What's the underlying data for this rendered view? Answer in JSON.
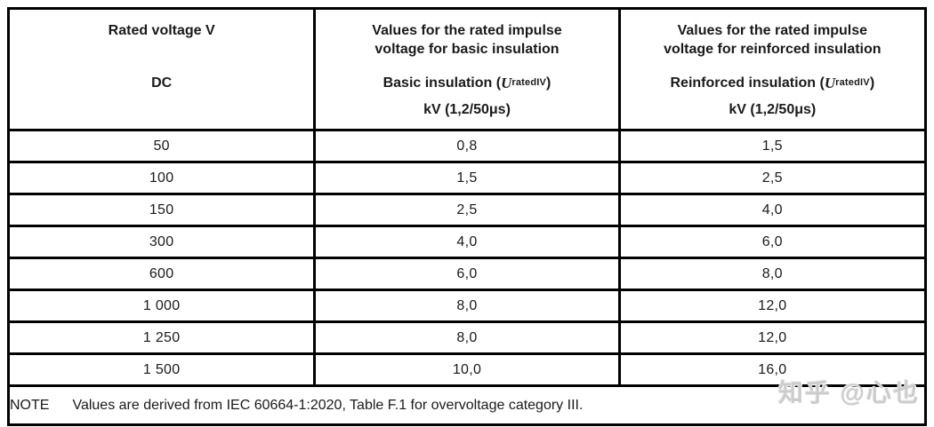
{
  "table": {
    "header": {
      "col1": {
        "title": "Rated voltage V",
        "mid": "DC"
      },
      "col2": {
        "title_line1": "Values for the rated impulse",
        "title_line2": "voltage for basic insulation",
        "mid_prefix": "Basic insulation (",
        "mid_var": "U",
        "mid_subscript": "ratedIV",
        "mid_suffix": ")",
        "unit": "kV (1,2/50μs)"
      },
      "col3": {
        "title_line1": "Values for the rated impulse",
        "title_line2": "voltage for reinforced insulation",
        "mid_prefix": "Reinforced insulation (",
        "mid_var": "U",
        "mid_subscript": "ratedIV",
        "mid_suffix": ")",
        "unit": "kV (1,2/50μs)"
      }
    },
    "rows": [
      {
        "voltage": "50",
        "basic": "0,8",
        "reinforced": "1,5"
      },
      {
        "voltage": "100",
        "basic": "1,5",
        "reinforced": "2,5"
      },
      {
        "voltage": "150",
        "basic": "2,5",
        "reinforced": "4,0"
      },
      {
        "voltage": "300",
        "basic": "4,0",
        "reinforced": "6,0"
      },
      {
        "voltage": "600",
        "basic": "6,0",
        "reinforced": "8,0"
      },
      {
        "voltage": "1 000",
        "basic": "8,0",
        "reinforced": "12,0"
      },
      {
        "voltage": "1 250",
        "basic": "8,0",
        "reinforced": "12,0"
      },
      {
        "voltage": "1 500",
        "basic": "10,0",
        "reinforced": "16,0"
      }
    ],
    "note": {
      "label": "NOTE",
      "text": "Values are derived from IEC 60664-1:2020, Table F.1 for overvoltage category III."
    }
  },
  "watermark": {
    "text": "知乎 @心也",
    "color": "#cccccc"
  },
  "chart_data": {
    "type": "table",
    "title": "Rated impulse voltage values for basic and reinforced insulation (DC)",
    "columns": [
      "Rated voltage V DC",
      "Basic insulation U_ratedIV kV (1,2/50μs)",
      "Reinforced insulation U_ratedIV kV (1,2/50μs)"
    ],
    "rows": [
      [
        50,
        0.8,
        1.5
      ],
      [
        100,
        1.5,
        2.5
      ],
      [
        150,
        2.5,
        4.0
      ],
      [
        300,
        4.0,
        6.0
      ],
      [
        600,
        6.0,
        8.0
      ],
      [
        1000,
        8.0,
        12.0
      ],
      [
        1250,
        8.0,
        12.0
      ],
      [
        1500,
        10.0,
        16.0
      ]
    ],
    "note": "Values are derived from IEC 60664-1:2020, Table F.1 for overvoltage category III."
  }
}
